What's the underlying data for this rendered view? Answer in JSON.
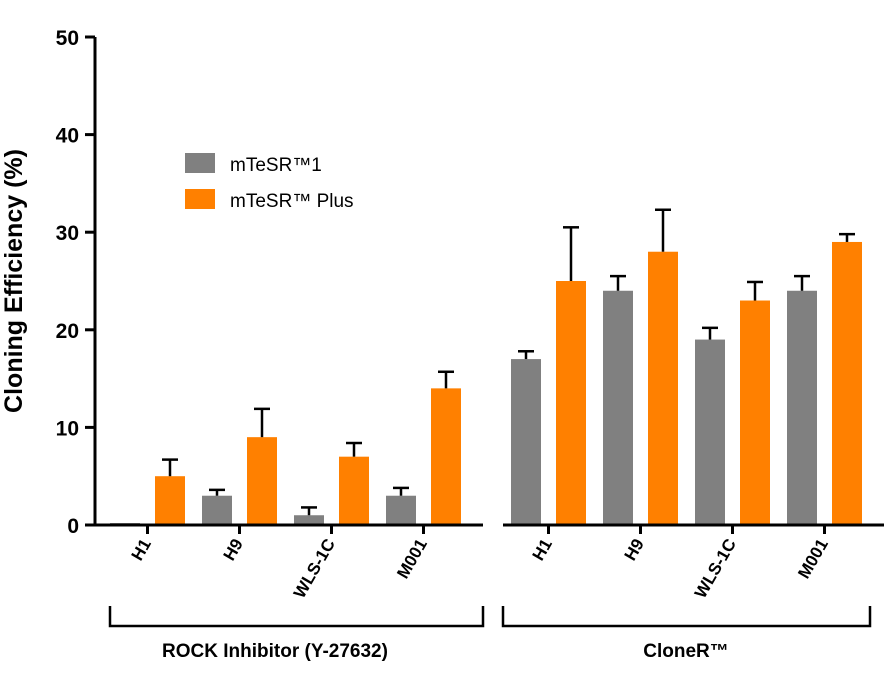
{
  "chart_data": {
    "type": "bar",
    "ylabel": "Cloning Efficiency (%)",
    "ylim": [
      0,
      50
    ],
    "yticks": [
      0,
      10,
      20,
      30,
      40,
      50
    ],
    "grid": false,
    "legend_position": "upper-left",
    "groups": [
      {
        "label": "ROCK Inhibitor (Y-27632)",
        "categories": [
          "H1",
          "H9",
          "WLS-1C",
          "M001"
        ]
      },
      {
        "label": "CloneR™",
        "categories": [
          "H1",
          "H9",
          "WLS-1C",
          "M001"
        ]
      }
    ],
    "series": [
      {
        "name": "mTeSR™1",
        "color": "#808080",
        "values": [
          0.2,
          3,
          1,
          3,
          17,
          24,
          19,
          24
        ],
        "errors": [
          0,
          0.6,
          0.8,
          0.8,
          0.8,
          1.5,
          1.2,
          1.5
        ]
      },
      {
        "name": "mTeSR™ Plus",
        "color": "#ff8000",
        "values": [
          5,
          9,
          7,
          14,
          25,
          28,
          23,
          29
        ],
        "errors": [
          1.7,
          2.9,
          1.4,
          1.7,
          5.5,
          4.3,
          1.9,
          0.8
        ]
      }
    ]
  }
}
